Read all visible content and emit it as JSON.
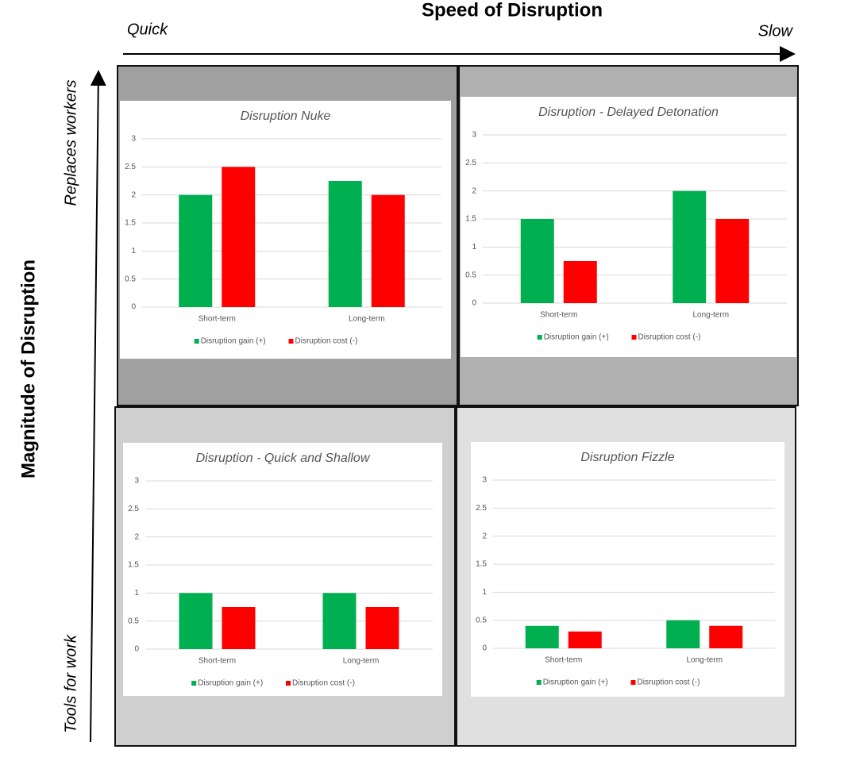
{
  "quadrant": {
    "x_title": "Speed of Disruption",
    "x_start": "Quick",
    "x_end": "Slow",
    "y_title": "Magnitude of Disruption",
    "y_end": "Replaces workers",
    "y_start": "Tools for work"
  },
  "chart_data": [
    {
      "type": "bar",
      "title": "Disruption Nuke",
      "categories": [
        "Short-term",
        "Long-term"
      ],
      "series": [
        {
          "name": "Disruption gain (+)",
          "color": "#00b050",
          "values": [
            2,
            2.25
          ]
        },
        {
          "name": "Disruption cost (-)",
          "color": "#ff0000",
          "values": [
            2.5,
            2
          ]
        }
      ],
      "ylim": [
        0,
        3
      ],
      "yticks": [
        0,
        0.5,
        1,
        1.5,
        2,
        2.5,
        3
      ],
      "grid": true,
      "legend": "bottom"
    },
    {
      "type": "bar",
      "title": "Disruption - Delayed Detonation",
      "categories": [
        "Short-term",
        "Long-term"
      ],
      "series": [
        {
          "name": "Disruption gain (+)",
          "color": "#00b050",
          "values": [
            1.5,
            2
          ]
        },
        {
          "name": "Disruption cost (-)",
          "color": "#ff0000",
          "values": [
            0.75,
            1.5
          ]
        }
      ],
      "ylim": [
        0,
        3
      ],
      "yticks": [
        0,
        0.5,
        1,
        1.5,
        2,
        2.5,
        3
      ],
      "grid": true,
      "legend": "bottom"
    },
    {
      "type": "bar",
      "title": "Disruption - Quick and Shallow",
      "categories": [
        "Short-term",
        "Long-term"
      ],
      "series": [
        {
          "name": "Disruption gain (+)",
          "color": "#00b050",
          "values": [
            1,
            1
          ]
        },
        {
          "name": "Disruption cost (-)",
          "color": "#ff0000",
          "values": [
            0.75,
            0.75
          ]
        }
      ],
      "ylim": [
        0,
        3
      ],
      "yticks": [
        0,
        0.5,
        1,
        1.5,
        2,
        2.5,
        3
      ],
      "grid": true,
      "legend": "bottom"
    },
    {
      "type": "bar",
      "title": "Disruption Fizzle",
      "categories": [
        "Short-term",
        "Long-term"
      ],
      "series": [
        {
          "name": "Disruption gain (+)",
          "color": "#00b050",
          "values": [
            0.4,
            0.5
          ]
        },
        {
          "name": "Disruption cost (-)",
          "color": "#ff0000",
          "values": [
            0.3,
            0.4
          ]
        }
      ],
      "ylim": [
        0,
        3
      ],
      "yticks": [
        0,
        0.5,
        1,
        1.5,
        2,
        2.5,
        3
      ],
      "grid": true,
      "legend": "bottom"
    }
  ]
}
